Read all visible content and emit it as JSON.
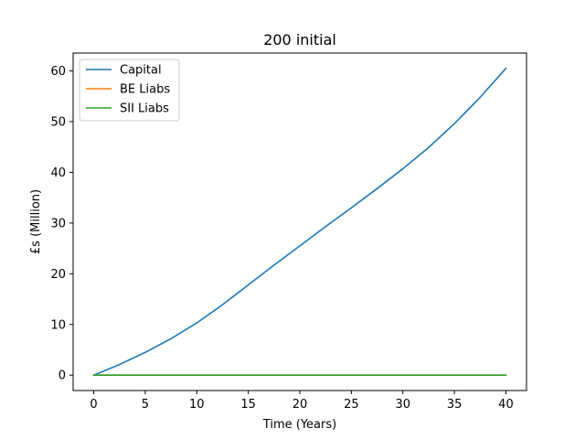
{
  "chart_data": {
    "type": "line",
    "title": "200 initial",
    "xlabel": "Time (Years)",
    "ylabel": "£s (Million)",
    "xlim": [
      -2,
      42
    ],
    "ylim": [
      -3.025,
      63.525
    ],
    "xticks": [
      0,
      5,
      10,
      15,
      20,
      25,
      30,
      35,
      40
    ],
    "yticks": [
      0,
      10,
      20,
      30,
      40,
      50,
      60
    ],
    "grid": false,
    "legend_position": "top-left",
    "x": [
      0,
      2.5,
      5,
      7.5,
      10,
      12.5,
      15,
      17.5,
      20,
      22.5,
      25,
      27.5,
      30,
      32.5,
      35,
      37.5,
      40
    ],
    "series": [
      {
        "name": "Capital",
        "color": "#1f77b4",
        "values": [
          0,
          2.1,
          4.5,
          7.2,
          10.3,
          13.9,
          17.8,
          21.7,
          25.5,
          29.3,
          33.0,
          36.8,
          40.7,
          44.9,
          49.6,
          54.8,
          60.5
        ]
      },
      {
        "name": "BE Liabs",
        "color": "#ff7f0e",
        "values": [
          0,
          0,
          0,
          0,
          0,
          0,
          0,
          0,
          0,
          0,
          0,
          0,
          0,
          0,
          0,
          0,
          0
        ]
      },
      {
        "name": "SII Liabs",
        "color": "#2ca02c",
        "values": [
          0,
          0,
          0,
          0,
          0,
          0,
          0,
          0,
          0,
          0,
          0,
          0,
          0,
          0,
          0,
          0,
          0
        ]
      }
    ]
  }
}
